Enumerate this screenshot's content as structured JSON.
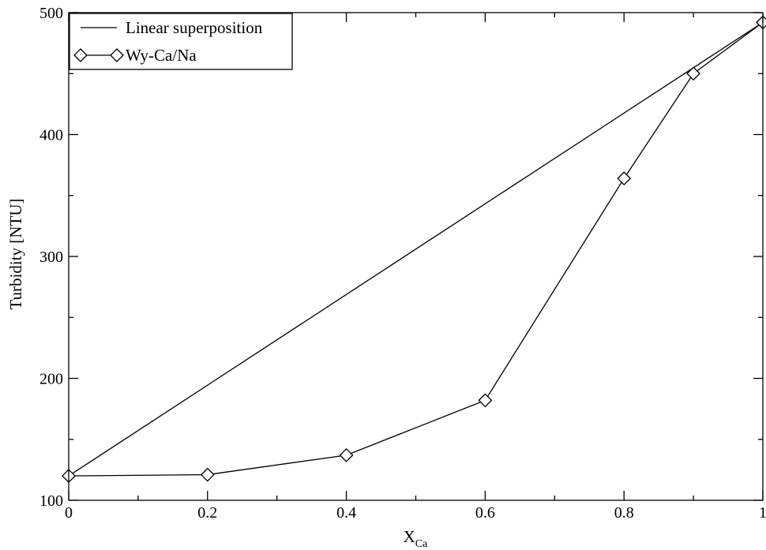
{
  "chart_data": {
    "type": "line",
    "xlabel": "X",
    "xlabel_sub": "Ca",
    "ylabel": "Turbidity [NTU]",
    "xlim": [
      0,
      1
    ],
    "ylim": [
      100,
      500
    ],
    "x_ticks": [
      0,
      0.2,
      0.4,
      0.6,
      0.8,
      1
    ],
    "x_tick_labels": [
      "0",
      "0.2",
      "0.4",
      "0.6",
      "0.8",
      "1"
    ],
    "x_minor_ticks": [
      0.1,
      0.3,
      0.5,
      0.7,
      0.9
    ],
    "y_ticks": [
      100,
      200,
      300,
      400,
      500
    ],
    "y_tick_labels": [
      "100",
      "200",
      "300",
      "400",
      "500"
    ],
    "y_minor_ticks": [
      150,
      250,
      350,
      450
    ],
    "grid": false,
    "legend_position": "top-left",
    "series": [
      {
        "name": "Linear superposition",
        "marker": "none",
        "color": "#000000",
        "x": [
          0,
          1
        ],
        "y": [
          120,
          492
        ]
      },
      {
        "name": "Wy-Ca/Na",
        "marker": "diamond",
        "color": "#000000",
        "x": [
          0,
          0.2,
          0.4,
          0.6,
          0.8,
          0.9,
          1
        ],
        "y": [
          120,
          121,
          137,
          182,
          364,
          450,
          492
        ]
      }
    ]
  }
}
